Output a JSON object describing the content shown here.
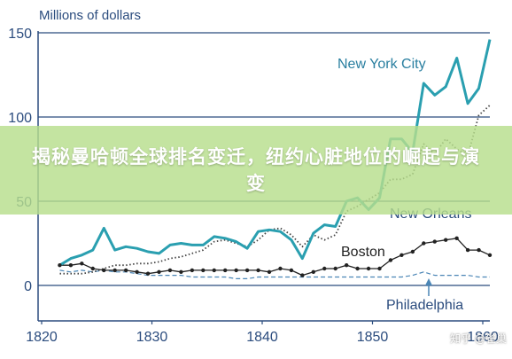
{
  "banner": {
    "title": "揭秘曼哈顿全球排名变迁，纽约心脏地位的崛起与演变"
  },
  "watermark": {
    "text": "知乎 @雀巢"
  },
  "chart_data": {
    "type": "line",
    "title": "",
    "ylabel": "Millions of dollars",
    "xlabel": "",
    "xlim": [
      1820,
      1860
    ],
    "ylim": [
      0,
      150
    ],
    "x_ticks": [
      1820,
      1830,
      1840,
      1850,
      1860
    ],
    "y_ticks": [
      0,
      50,
      100,
      150
    ],
    "grid": "horizontal",
    "legend": "inline labels",
    "series": [
      {
        "name": "New York City",
        "color": "#2a9fb0",
        "style": "solid-thick",
        "points": [
          [
            1821,
            12
          ],
          [
            1822,
            16
          ],
          [
            1823,
            18
          ],
          [
            1824,
            21
          ],
          [
            1825,
            34
          ],
          [
            1826,
            21
          ],
          [
            1827,
            23
          ],
          [
            1828,
            22
          ],
          [
            1829,
            20
          ],
          [
            1830,
            19
          ],
          [
            1831,
            24
          ],
          [
            1832,
            25
          ],
          [
            1833,
            24
          ],
          [
            1834,
            24
          ],
          [
            1835,
            29
          ],
          [
            1836,
            28
          ],
          [
            1837,
            26
          ],
          [
            1838,
            22
          ],
          [
            1839,
            32
          ],
          [
            1840,
            33
          ],
          [
            1841,
            32
          ],
          [
            1842,
            27
          ],
          [
            1843,
            16
          ],
          [
            1844,
            31
          ],
          [
            1845,
            36
          ],
          [
            1846,
            35
          ],
          [
            1847,
            50
          ],
          [
            1848,
            52
          ],
          [
            1849,
            45
          ],
          [
            1850,
            52
          ],
          [
            1851,
            87
          ],
          [
            1852,
            87
          ],
          [
            1853,
            79
          ],
          [
            1854,
            120
          ],
          [
            1855,
            113
          ],
          [
            1856,
            118
          ],
          [
            1857,
            135
          ],
          [
            1858,
            108
          ],
          [
            1859,
            117
          ],
          [
            1860,
            146
          ]
        ]
      },
      {
        "name": "New Orleans",
        "color": "#444444",
        "style": "dotted",
        "points": [
          [
            1821,
            7
          ],
          [
            1822,
            7
          ],
          [
            1823,
            7
          ],
          [
            1824,
            8
          ],
          [
            1825,
            10
          ],
          [
            1826,
            12
          ],
          [
            1827,
            12
          ],
          [
            1828,
            13
          ],
          [
            1829,
            13
          ],
          [
            1830,
            14
          ],
          [
            1831,
            16
          ],
          [
            1832,
            17
          ],
          [
            1833,
            19
          ],
          [
            1834,
            21
          ],
          [
            1835,
            26
          ],
          [
            1836,
            27
          ],
          [
            1837,
            25
          ],
          [
            1838,
            23
          ],
          [
            1839,
            27
          ],
          [
            1840,
            33
          ],
          [
            1841,
            34
          ],
          [
            1842,
            30
          ],
          [
            1843,
            23
          ],
          [
            1844,
            30
          ],
          [
            1845,
            27
          ],
          [
            1846,
            30
          ],
          [
            1847,
            44
          ],
          [
            1848,
            47
          ],
          [
            1849,
            51
          ],
          [
            1850,
            55
          ],
          [
            1851,
            63
          ],
          [
            1852,
            63
          ],
          [
            1853,
            66
          ],
          [
            1854,
            84
          ],
          [
            1855,
            78
          ],
          [
            1856,
            87
          ],
          [
            1857,
            81
          ],
          [
            1858,
            77
          ],
          [
            1859,
            101
          ],
          [
            1860,
            107
          ]
        ]
      },
      {
        "name": "Boston",
        "color": "#222222",
        "style": "solid-dots",
        "points": [
          [
            1821,
            12
          ],
          [
            1822,
            12
          ],
          [
            1823,
            13
          ],
          [
            1824,
            10
          ],
          [
            1825,
            9
          ],
          [
            1826,
            9
          ],
          [
            1827,
            9
          ],
          [
            1828,
            8
          ],
          [
            1829,
            7
          ],
          [
            1830,
            8
          ],
          [
            1831,
            9
          ],
          [
            1832,
            8
          ],
          [
            1833,
            9
          ],
          [
            1834,
            9
          ],
          [
            1835,
            9
          ],
          [
            1836,
            9
          ],
          [
            1837,
            9
          ],
          [
            1838,
            9
          ],
          [
            1839,
            9
          ],
          [
            1840,
            8
          ],
          [
            1841,
            10
          ],
          [
            1842,
            9
          ],
          [
            1843,
            6
          ],
          [
            1844,
            8
          ],
          [
            1845,
            10
          ],
          [
            1846,
            10
          ],
          [
            1847,
            12
          ],
          [
            1848,
            10
          ],
          [
            1849,
            10
          ],
          [
            1850,
            10
          ],
          [
            1851,
            15
          ],
          [
            1852,
            18
          ],
          [
            1853,
            20
          ],
          [
            1854,
            25
          ],
          [
            1855,
            26
          ],
          [
            1856,
            27
          ],
          [
            1857,
            28
          ],
          [
            1858,
            21
          ],
          [
            1859,
            21
          ],
          [
            1860,
            18
          ]
        ]
      },
      {
        "name": "Philadelphia",
        "color": "#4b86b6",
        "style": "dashed",
        "points": [
          [
            1821,
            9
          ],
          [
            1822,
            8
          ],
          [
            1823,
            9
          ],
          [
            1824,
            8
          ],
          [
            1825,
            9
          ],
          [
            1826,
            8
          ],
          [
            1827,
            8
          ],
          [
            1828,
            7
          ],
          [
            1829,
            6
          ],
          [
            1830,
            6
          ],
          [
            1831,
            6
          ],
          [
            1832,
            6
          ],
          [
            1833,
            5
          ],
          [
            1834,
            5
          ],
          [
            1835,
            5
          ],
          [
            1836,
            5
          ],
          [
            1837,
            4
          ],
          [
            1838,
            4
          ],
          [
            1839,
            5
          ],
          [
            1840,
            5
          ],
          [
            1841,
            5
          ],
          [
            1842,
            5
          ],
          [
            1843,
            5
          ],
          [
            1844,
            5
          ],
          [
            1845,
            5
          ],
          [
            1846,
            5
          ],
          [
            1847,
            5
          ],
          [
            1848,
            5
          ],
          [
            1849,
            5
          ],
          [
            1850,
            5
          ],
          [
            1851,
            5
          ],
          [
            1852,
            5
          ],
          [
            1853,
            6
          ],
          [
            1854,
            8
          ],
          [
            1855,
            6
          ],
          [
            1856,
            6
          ],
          [
            1857,
            6
          ],
          [
            1858,
            6
          ],
          [
            1859,
            5
          ],
          [
            1860,
            5
          ]
        ]
      }
    ]
  }
}
